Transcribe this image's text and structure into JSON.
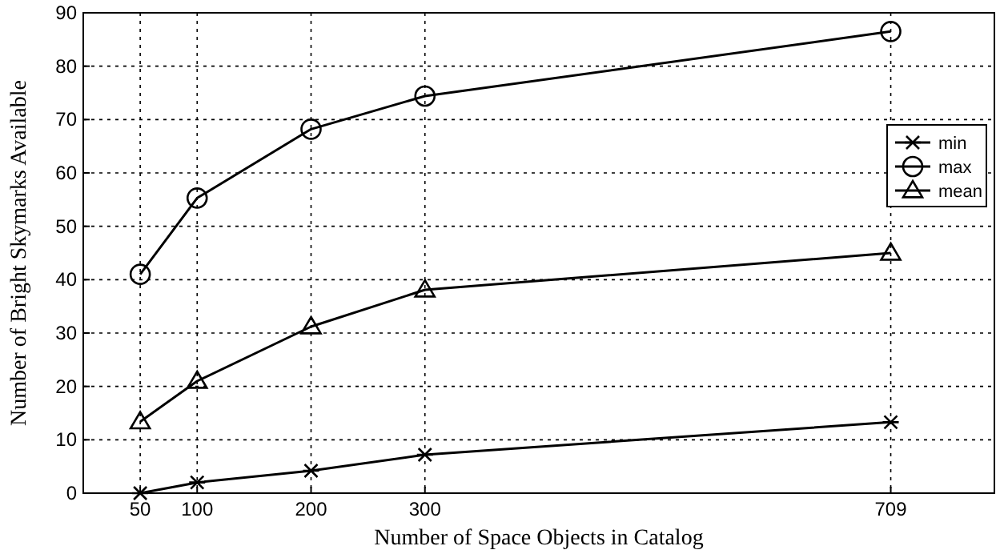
{
  "chart_data": {
    "type": "line",
    "xlabel": "Number of Space Objects in Catalog",
    "ylabel": "Number of Bright Skymarks Available",
    "x": [
      50,
      100,
      200,
      300,
      709
    ],
    "series": [
      {
        "name": "min",
        "color": "#000000",
        "marker": "cross",
        "values": [
          0,
          2,
          4.2,
          7.2,
          13.3
        ]
      },
      {
        "name": "max",
        "color": "#000000",
        "marker": "circle",
        "values": [
          41,
          55.3,
          68.2,
          74.4,
          86.5
        ]
      },
      {
        "name": "mean",
        "color": "#000000",
        "marker": "triangle",
        "values": [
          13.4,
          21,
          31.2,
          38.1,
          45
        ]
      }
    ],
    "xlim": [
      0,
      800
    ],
    "xticks": [
      50,
      100,
      200,
      300,
      709
    ],
    "ylim": [
      0,
      90
    ],
    "yticks": [
      0,
      10,
      20,
      30,
      40,
      50,
      60,
      70,
      80,
      90
    ],
    "grid": true,
    "legend": "right",
    "line_style": "solid"
  }
}
